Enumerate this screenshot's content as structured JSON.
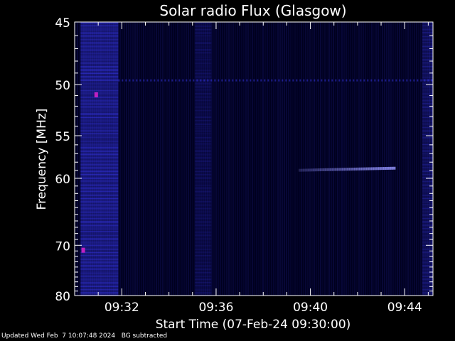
{
  "chart_data": {
    "type": "heatmap",
    "title": "Solar radio Flux (Glasgow)",
    "xlabel": "Start Time (07-Feb-24 09:30:00)",
    "ylabel": "Frequency [MHz]",
    "x_range_minutes": [
      0.0,
      15.2
    ],
    "y_range_mhz": [
      45,
      80
    ],
    "y_scale": "reciprocal",
    "x_ticks": [
      {
        "minute": 2,
        "label": "09:32"
      },
      {
        "minute": 6,
        "label": "09:36"
      },
      {
        "minute": 10,
        "label": "09:40"
      },
      {
        "minute": 14,
        "label": "09:44"
      }
    ],
    "y_ticks": [
      {
        "mhz": 45,
        "label": "45"
      },
      {
        "mhz": 50,
        "label": "50"
      },
      {
        "mhz": 55,
        "label": "55"
      },
      {
        "mhz": 60,
        "label": "60"
      },
      {
        "mhz": 70,
        "label": "70"
      },
      {
        "mhz": 80,
        "label": "80"
      }
    ],
    "colors": {
      "background": "#000000",
      "plot_bg": "#00001e",
      "emission": "#3c3cff",
      "burst": "#9696ff",
      "hot_pixel": "#c020c0",
      "axes": "#ffffff"
    },
    "features": [
      {
        "kind": "band",
        "t_start": 0.25,
        "t_end": 1.85,
        "intensity": 0.6
      },
      {
        "kind": "band",
        "t_start": 5.1,
        "t_end": 5.8,
        "intensity": 0.22
      },
      {
        "kind": "band",
        "t_start": 14.75,
        "t_end": 15.2,
        "intensity": 0.35
      },
      {
        "kind": "line_horizontal",
        "mhz": 49.6,
        "t_start": 1.85,
        "t_end": 15.2,
        "intensity": 0.45
      },
      {
        "kind": "burst_line",
        "mhz": 58.9,
        "t_start": 9.5,
        "t_end": 13.6,
        "intensity": 0.8
      },
      {
        "kind": "hot_pixel",
        "t": 0.9,
        "mhz": 50.9
      },
      {
        "kind": "hot_pixel",
        "t": 0.35,
        "mhz": 70.8
      }
    ]
  },
  "footer": {
    "updated": "Updated Wed Feb  7 10:07:48 2024",
    "note": "BG subtracted"
  }
}
